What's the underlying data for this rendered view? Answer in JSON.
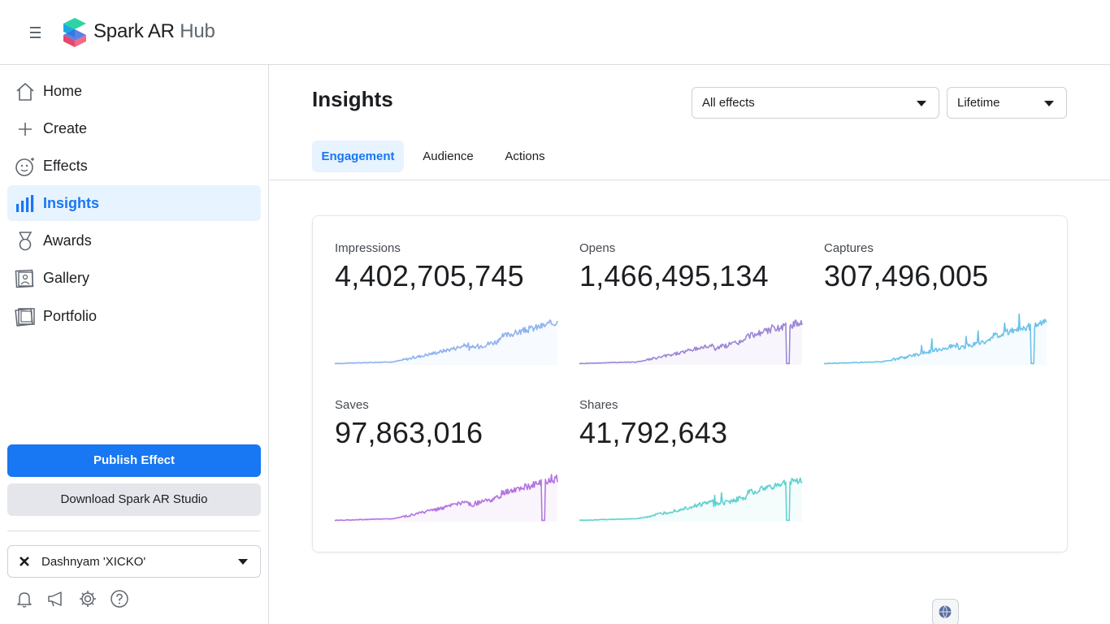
{
  "header": {
    "brand_main": "Spark AR",
    "brand_hub": "Hub"
  },
  "sidebar": {
    "items": [
      {
        "label": "Home",
        "icon": "home-icon"
      },
      {
        "label": "Create",
        "icon": "plus-icon"
      },
      {
        "label": "Effects",
        "icon": "face-sparkle-icon"
      },
      {
        "label": "Insights",
        "icon": "bar-chart-icon",
        "active": true
      },
      {
        "label": "Awards",
        "icon": "medal-icon"
      },
      {
        "label": "Gallery",
        "icon": "gallery-icon"
      },
      {
        "label": "Portfolio",
        "icon": "portfolio-icon"
      }
    ],
    "publish_label": "Publish Effect",
    "download_label": "Download Spark AR Studio",
    "account_name": "Dashnyam 'XICKO'",
    "footer_icons": [
      "bell-icon",
      "megaphone-icon",
      "gear-icon",
      "help-icon"
    ]
  },
  "main": {
    "title": "Insights",
    "effect_filter": "All effects",
    "range_filter": "Lifetime",
    "tabs": [
      {
        "label": "Engagement",
        "active": true
      },
      {
        "label": "Audience"
      },
      {
        "label": "Actions"
      }
    ],
    "metrics": [
      {
        "label": "Impressions",
        "value": "4,402,705,745",
        "color": "#8fb3ef"
      },
      {
        "label": "Opens",
        "value": "1,466,495,134",
        "color": "#9b86d6"
      },
      {
        "label": "Captures",
        "value": "307,496,005",
        "color": "#6cc2ea"
      },
      {
        "label": "Saves",
        "value": "97,863,016",
        "color": "#b275e0"
      },
      {
        "label": "Shares",
        "value": "41,792,643",
        "color": "#5fd1cf"
      }
    ]
  },
  "colors": {
    "accent": "#1877f2",
    "accent_bg": "#e7f3ff",
    "border": "#dadde1"
  }
}
